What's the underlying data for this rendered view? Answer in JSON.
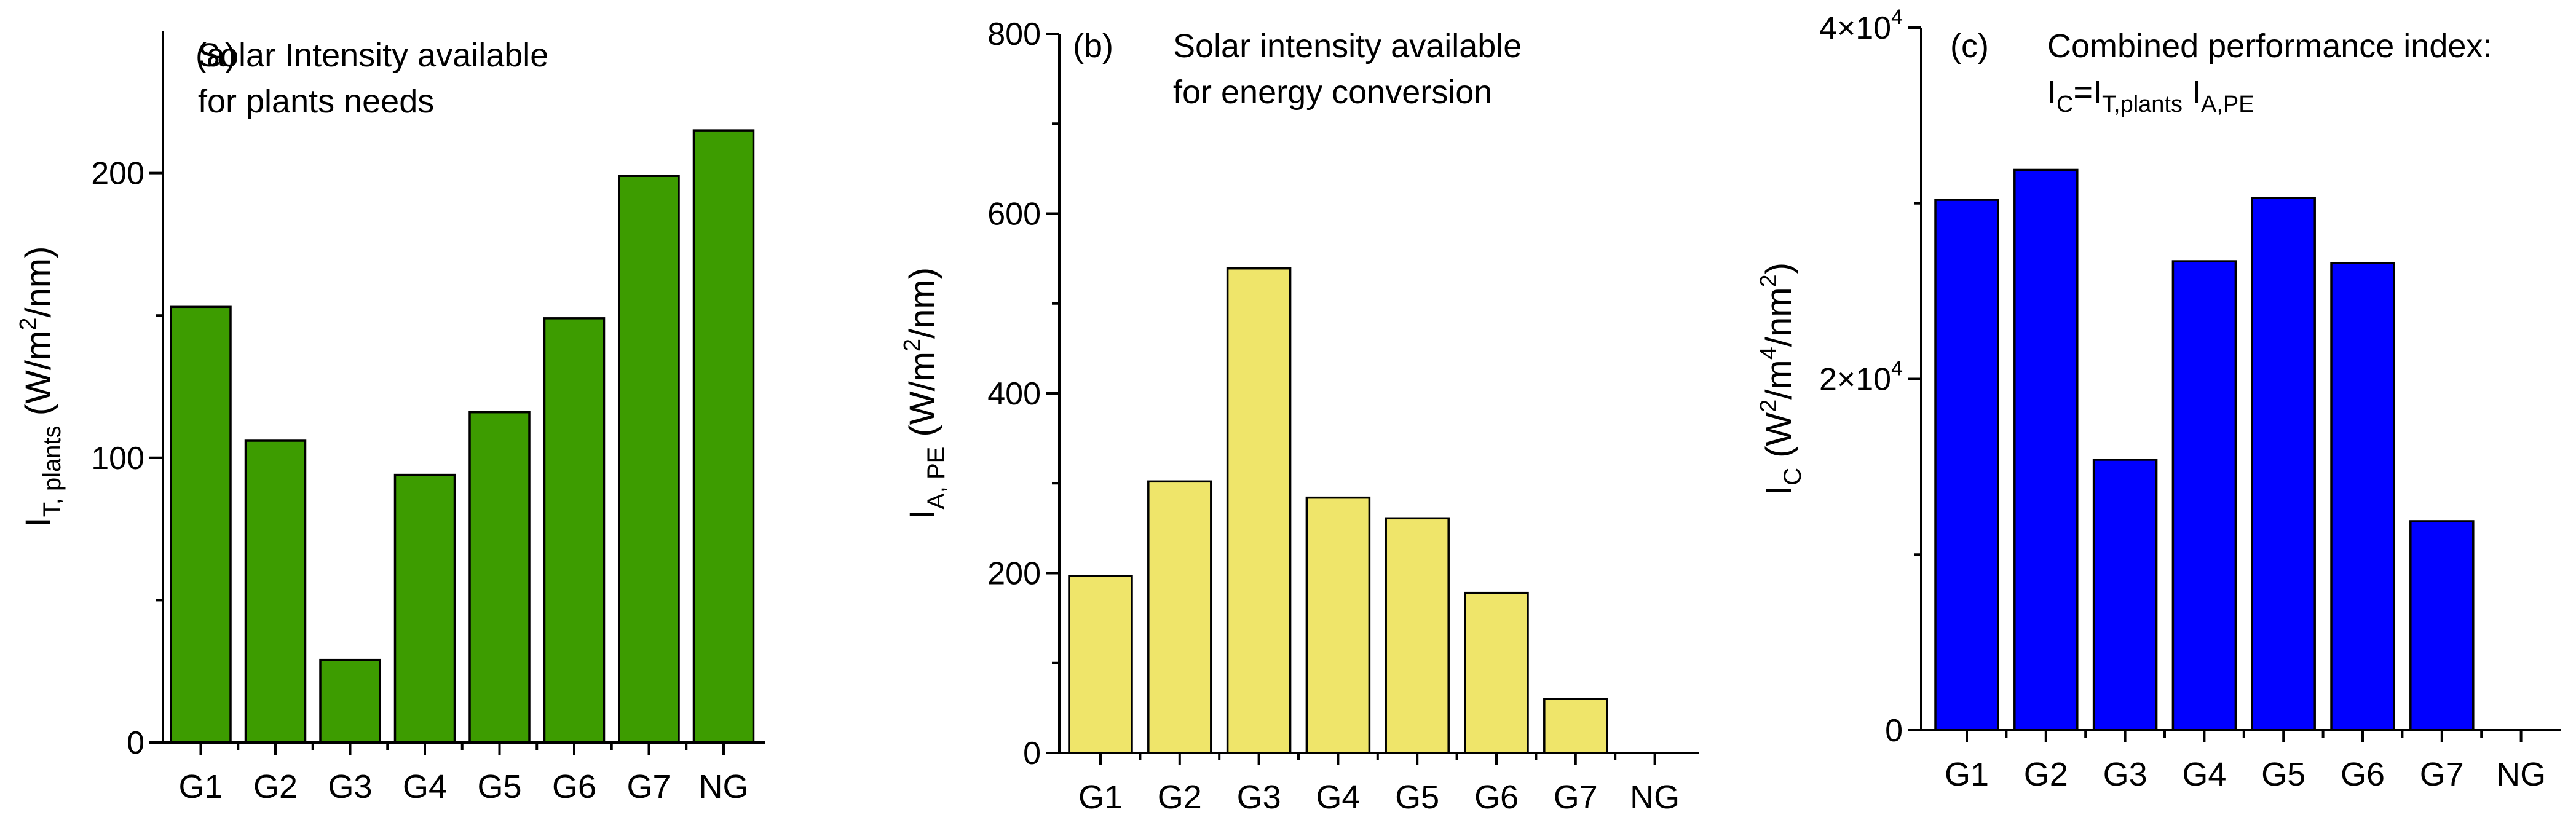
{
  "chart_data": [
    {
      "type": "bar",
      "panel_label": "(a)",
      "title_lines": [
        "Solar Intensity available",
        "for plants needs"
      ],
      "ylabel": {
        "main": "I",
        "sub": "T, plants",
        "unit_before": "(W/m",
        "unit_sup": "2",
        "unit_after": "/nm)"
      },
      "categories": [
        "G1",
        "G2",
        "G3",
        "G4",
        "G5",
        "G6",
        "G7",
        "NG"
      ],
      "values": [
        153,
        106,
        29,
        94,
        116,
        149,
        199,
        215
      ],
      "ylim": [
        0,
        250
      ],
      "yticks": [
        0,
        100,
        200
      ],
      "ytick_labels": [
        "0",
        "100",
        "200"
      ],
      "color": "#3d9c00"
    },
    {
      "type": "bar",
      "panel_label": "(b)",
      "title_lines": [
        "Solar intensity available",
        "for energy conversion"
      ],
      "ylabel": {
        "main": "I",
        "sub": "A, PE",
        "unit_before": "(W/m",
        "unit_sup": "2",
        "unit_after": "/nm)"
      },
      "categories": [
        "G1",
        "G2",
        "G3",
        "G4",
        "G5",
        "G6",
        "G7",
        "NG"
      ],
      "values": [
        197,
        302,
        539,
        284,
        261,
        178,
        60,
        0
      ],
      "ylim": [
        0,
        800
      ],
      "yticks": [
        0,
        200,
        400,
        600,
        800
      ],
      "ytick_labels": [
        "0",
        "200",
        "400",
        "600",
        "800"
      ],
      "color": "#efe56a"
    },
    {
      "type": "bar",
      "panel_label": "(c)",
      "title_lines": [
        "Combined performance index:"
      ],
      "formula": {
        "lhs": "I",
        "lhs_sub": "C",
        "eq": "=",
        "t1": "I",
        "t1_sub": "T,plants",
        "t2": "I",
        "t2_sub": "A,PE"
      },
      "ylabel": {
        "main": "I",
        "sub": "C",
        "unit_before": "(W",
        "unit_sup": "2",
        "unit_mid1": "/m",
        "unit_sup2": "4",
        "unit_mid2": "/nm",
        "unit_sup3": "2",
        "unit_after": ")"
      },
      "categories": [
        "G1",
        "G2",
        "G3",
        "G4",
        "G5",
        "G6",
        "G7",
        "NG"
      ],
      "values": [
        30200,
        31900,
        15400,
        26700,
        30300,
        26600,
        11900,
        0
      ],
      "ylim": [
        0,
        40000
      ],
      "yticks": [
        0,
        20000,
        40000
      ],
      "ytick_labels": [
        {
          "base": "0",
          "exp": ""
        },
        {
          "base": "2×10",
          "exp": "4"
        },
        {
          "base": "4×10",
          "exp": "4"
        }
      ],
      "color": "#0000ff"
    }
  ]
}
